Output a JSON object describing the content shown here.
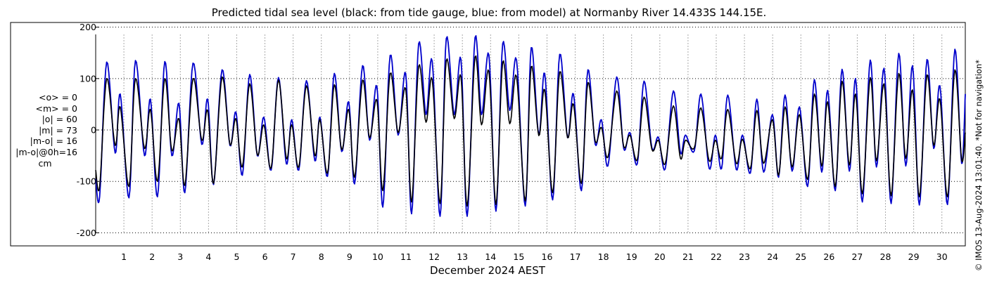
{
  "title": "Predicted tidal sea level (black: from tide gauge, blue: from model) at Normanby River 14.433S 144.15E.",
  "stats": {
    "mean_obs": "<o> = 0",
    "mean_model": "<m> = 0",
    "abs_obs": "|o| = 60",
    "abs_model": "|m| = 73",
    "abs_diff": "|m-o| = 16",
    "abs_diff_0h": "|m-o|@0h=16",
    "unit": "cm"
  },
  "side_note": "© IMOS 13-Aug-2024 13:01:40. *Not for navigation*",
  "chart_data": {
    "type": "line",
    "title": "Predicted tidal sea level (black: from tide gauge, blue: from model) at Normanby River 14.433S 144.15E.",
    "xlabel": "December 2024 AEST",
    "ylabel": "",
    "x_unit": "days of December 2024",
    "xlim": [
      0.0,
      30.83
    ],
    "ylim": [
      -220,
      205
    ],
    "yticks": [
      -200,
      -100,
      0,
      100,
      200
    ],
    "ytick_labels": [
      "-200",
      "-100",
      "0",
      "100",
      "200"
    ],
    "xticks": [
      1,
      2,
      3,
      4,
      5,
      6,
      7,
      8,
      9,
      10,
      11,
      12,
      13,
      14,
      15,
      16,
      17,
      18,
      19,
      20,
      21,
      22,
      23,
      24,
      25,
      26,
      27,
      28,
      29,
      30
    ],
    "xtick_labels": [
      "1",
      "2",
      "3",
      "4",
      "5",
      "6",
      "7",
      "8",
      "9",
      "10",
      "11",
      "12",
      "13",
      "14",
      "15",
      "16",
      "17",
      "18",
      "19",
      "20",
      "21",
      "22",
      "23",
      "24",
      "25",
      "26",
      "27",
      "28",
      "29",
      "30"
    ],
    "grid": true,
    "series": [
      {
        "color": "#000000",
        "label": "tide gauge",
        "x": [
          0.0,
          0.14,
          0.39,
          0.69,
          0.87,
          1.18,
          1.41,
          1.73,
          1.94,
          2.19,
          2.45,
          2.7,
          2.95,
          3.16,
          3.45,
          3.76,
          3.97,
          4.18,
          4.48,
          4.76,
          4.97,
          5.2,
          5.46,
          5.73,
          5.96,
          6.22,
          6.48,
          6.76,
          6.95,
          7.2,
          7.47,
          7.77,
          7.95,
          8.22,
          8.46,
          8.72,
          8.97,
          9.18,
          9.46,
          9.71,
          9.97,
          10.18,
          10.44,
          10.72,
          10.99,
          11.2,
          11.45,
          11.71,
          11.93,
          12.21,
          12.43,
          12.71,
          12.95,
          13.17,
          13.45,
          13.68,
          13.94,
          14.19,
          14.43,
          14.68,
          14.92,
          15.23,
          15.44,
          15.71,
          15.92,
          16.2,
          16.45,
          16.73,
          16.94,
          17.22,
          17.45,
          17.71,
          17.93,
          18.16,
          18.47,
          18.72,
          18.94,
          19.2,
          19.44,
          19.72,
          19.95,
          20.19,
          20.48,
          20.73,
          20.91,
          21.22,
          21.46,
          21.75,
          21.97,
          22.19,
          22.41,
          22.71,
          22.93,
          23.21,
          23.44,
          23.68,
          23.99,
          24.21,
          24.44,
          24.69,
          24.95,
          25.24,
          25.48,
          25.74,
          25.95,
          26.22,
          26.46,
          26.72,
          26.94,
          27.18,
          27.46,
          27.68,
          27.95,
          28.2,
          28.47,
          28.72,
          28.96,
          29.2,
          29.47,
          29.71,
          29.93,
          30.2,
          30.46,
          30.7,
          30.83
        ],
        "values": [
          -78,
          -110,
          100,
          -30,
          45,
          -110,
          100,
          -36,
          40,
          -100,
          100,
          -40,
          22,
          -108,
          100,
          -20,
          38,
          -104,
          103,
          -28,
          22,
          -72,
          90,
          -48,
          10,
          -74,
          97,
          -55,
          10,
          -72,
          86,
          -50,
          20,
          -84,
          88,
          -38,
          40,
          -92,
          97,
          -15,
          58,
          -118,
          110,
          -5,
          80,
          -140,
          124,
          15,
          98,
          -143,
          135,
          22,
          103,
          -148,
          142,
          10,
          114,
          -145,
          132,
          12,
          104,
          -138,
          123,
          -11,
          78,
          -122,
          113,
          -15,
          50,
          -104,
          92,
          -22,
          5,
          -53,
          76,
          -32,
          -10,
          -58,
          64,
          -38,
          -20,
          -66,
          47,
          -55,
          -20,
          -35,
          43,
          -60,
          -20,
          -55,
          40,
          -65,
          -18,
          -75,
          38,
          -65,
          20,
          -88,
          45,
          -72,
          30,
          -96,
          70,
          -70,
          55,
          -110,
          95,
          -68,
          70,
          -124,
          102,
          -60,
          90,
          -128,
          110,
          -55,
          78,
          -130,
          107,
          -30,
          60,
          -130,
          117,
          -58,
          -5
        ]
      },
      {
        "color": "#0000cc",
        "label": "model",
        "x": [
          0.0,
          0.14,
          0.39,
          0.69,
          0.87,
          1.18,
          1.41,
          1.73,
          1.94,
          2.19,
          2.45,
          2.7,
          2.95,
          3.16,
          3.45,
          3.76,
          3.97,
          4.18,
          4.48,
          4.76,
          4.97,
          5.2,
          5.46,
          5.73,
          5.96,
          6.22,
          6.48,
          6.76,
          6.95,
          7.2,
          7.47,
          7.77,
          7.95,
          8.22,
          8.46,
          8.72,
          8.97,
          9.18,
          9.46,
          9.71,
          9.97,
          10.18,
          10.44,
          10.72,
          10.99,
          11.2,
          11.45,
          11.71,
          11.93,
          12.21,
          12.43,
          12.71,
          12.95,
          13.17,
          13.45,
          13.68,
          13.94,
          14.19,
          14.43,
          14.68,
          14.92,
          15.23,
          15.44,
          15.71,
          15.92,
          16.2,
          16.45,
          16.73,
          16.94,
          17.22,
          17.45,
          17.71,
          17.93,
          18.16,
          18.47,
          18.72,
          18.94,
          19.2,
          19.44,
          19.72,
          19.95,
          20.19,
          20.48,
          20.73,
          20.91,
          21.22,
          21.46,
          21.75,
          21.97,
          22.19,
          22.41,
          22.71,
          22.93,
          23.21,
          23.44,
          23.68,
          23.99,
          24.21,
          24.44,
          24.69,
          24.95,
          25.24,
          25.48,
          25.74,
          25.95,
          26.22,
          26.46,
          26.72,
          26.94,
          27.18,
          27.46,
          27.68,
          27.95,
          28.2,
          28.47,
          28.72,
          28.96,
          29.2,
          29.47,
          29.71,
          29.93,
          30.2,
          30.46,
          30.7,
          30.83
        ],
        "values": [
          -95,
          -130,
          132,
          -45,
          70,
          -132,
          135,
          -50,
          60,
          -130,
          133,
          -50,
          52,
          -122,
          130,
          -28,
          60,
          -106,
          117,
          -30,
          35,
          -88,
          108,
          -50,
          25,
          -78,
          102,
          -66,
          20,
          -78,
          96,
          -60,
          25,
          -90,
          110,
          -42,
          55,
          -105,
          125,
          -20,
          85,
          -150,
          145,
          -10,
          110,
          -163,
          168,
          30,
          134,
          -168,
          178,
          30,
          137,
          -168,
          180,
          30,
          146,
          -158,
          168,
          38,
          136,
          -148,
          160,
          -10,
          110,
          -136,
          147,
          -15,
          70,
          -118,
          117,
          -28,
          20,
          -70,
          103,
          -36,
          -5,
          -66,
          95,
          -35,
          -14,
          -76,
          76,
          -44,
          -10,
          -41,
          70,
          -75,
          -10,
          -75,
          68,
          -77,
          -10,
          -84,
          60,
          -82,
          30,
          -92,
          68,
          -80,
          45,
          -110,
          98,
          -82,
          77,
          -118,
          118,
          -80,
          100,
          -140,
          136,
          -72,
          120,
          -143,
          149,
          -70,
          125,
          -146,
          137,
          -36,
          86,
          -145,
          157,
          -65,
          70
        ]
      }
    ]
  }
}
